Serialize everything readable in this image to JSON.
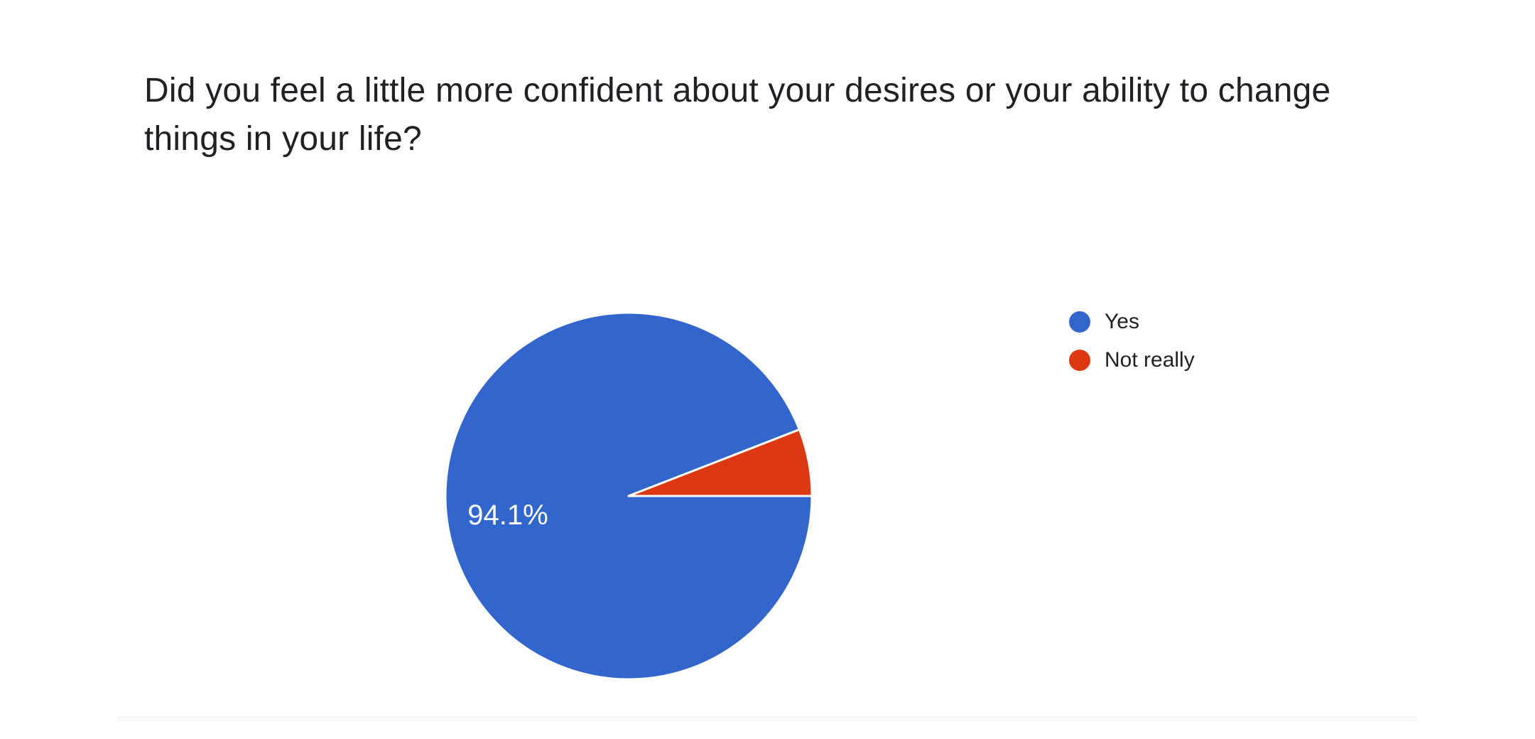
{
  "chart_data": {
    "type": "pie",
    "title": "Did you feel a little more confident about your desires or your ability to change things in your life?",
    "labels": [
      "Yes",
      "Not really"
    ],
    "values": [
      94.1,
      5.9
    ],
    "colors": [
      "#3366cc",
      "#dc3912"
    ],
    "slice_label": "94.1%",
    "slice_label_color": "#ffffff",
    "legend_position": "right",
    "start_angle": "east",
    "direction": "clockwise",
    "background": "#ffffff"
  }
}
